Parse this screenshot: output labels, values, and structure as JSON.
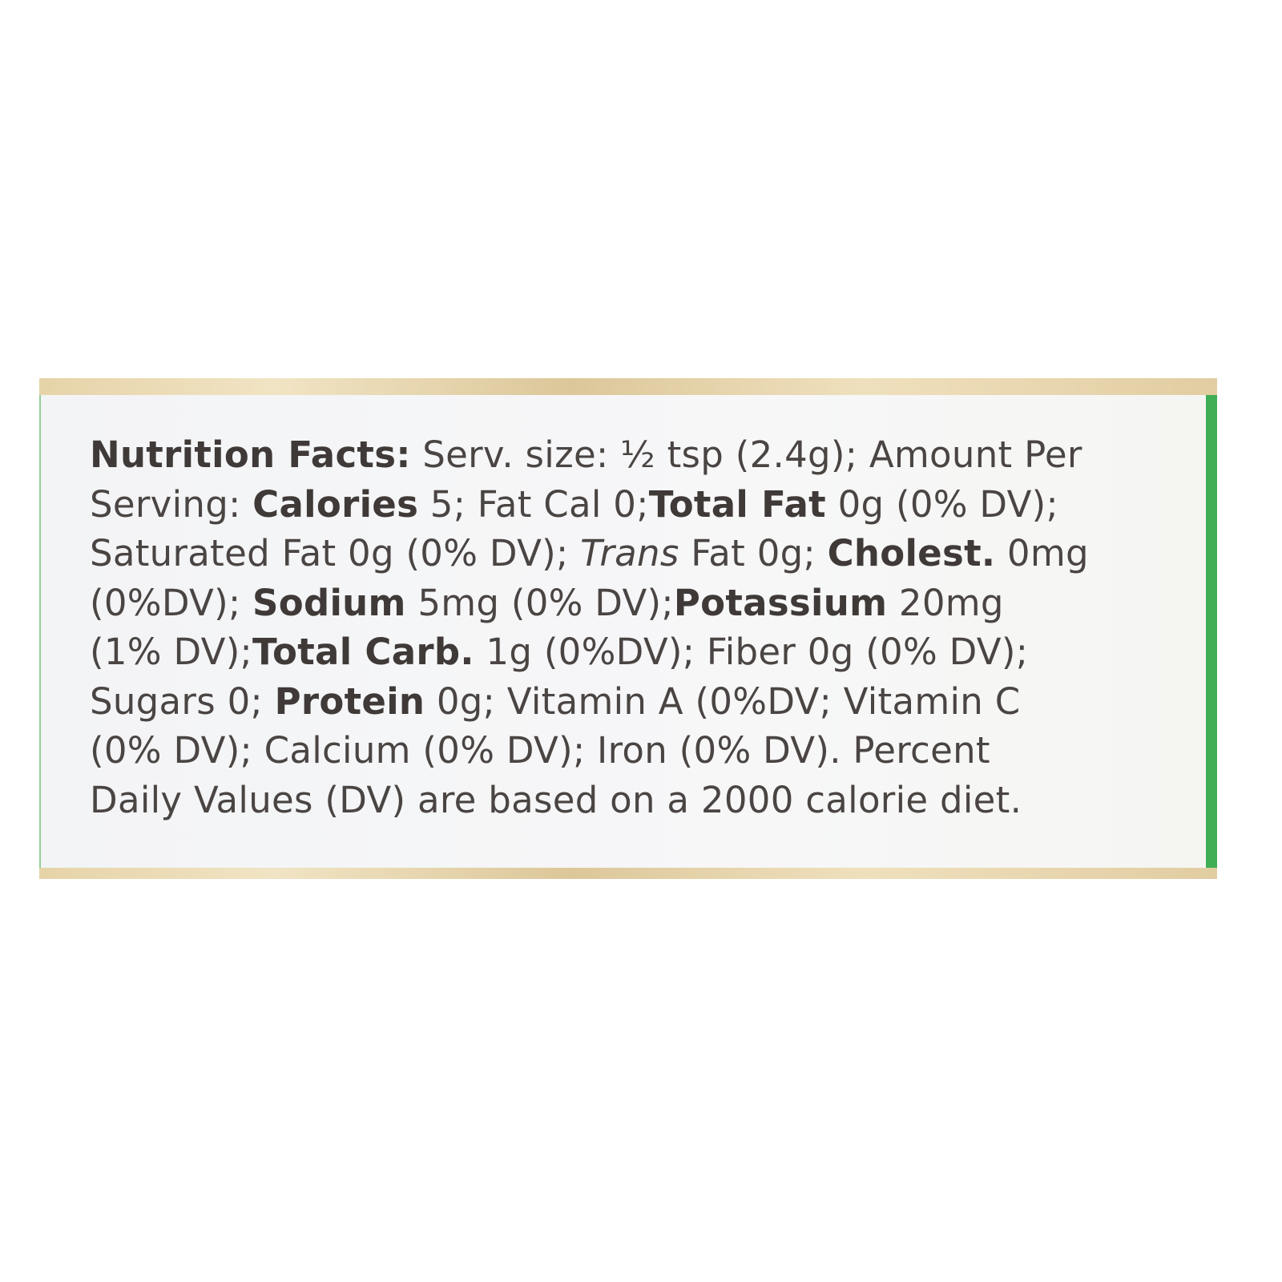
{
  "label": {
    "lines": [
      [
        {
          "t": "Nutrition Facts:",
          "s": "b"
        },
        {
          "t": " Serv. size: ½ tsp (2.4g); Amount Per",
          "s": ""
        }
      ],
      [
        {
          "t": "Serving: ",
          "s": ""
        },
        {
          "t": "Calories",
          "s": "b"
        },
        {
          "t": " 5; Fat Cal 0;",
          "s": ""
        },
        {
          "t": "Total Fat",
          "s": "b"
        },
        {
          "t": " 0g (0% DV);",
          "s": ""
        }
      ],
      [
        {
          "t": "Saturated Fat 0g (0% DV); ",
          "s": ""
        },
        {
          "t": "Trans",
          "s": "i"
        },
        {
          "t": " Fat 0g; ",
          "s": ""
        },
        {
          "t": "Cholest.",
          "s": "b"
        },
        {
          "t": " 0mg",
          "s": ""
        }
      ],
      [
        {
          "t": "(0%DV); ",
          "s": ""
        },
        {
          "t": "Sodium",
          "s": "b"
        },
        {
          "t": " 5mg (0% DV);",
          "s": ""
        },
        {
          "t": "Potassium",
          "s": "b"
        },
        {
          "t": " 20mg",
          "s": ""
        }
      ],
      [
        {
          "t": "(1% DV);",
          "s": ""
        },
        {
          "t": "Total Carb.",
          "s": "b"
        },
        {
          "t": " 1g (0%DV); Fiber 0g (0% DV);",
          "s": ""
        }
      ],
      [
        {
          "t": "Sugars 0; ",
          "s": ""
        },
        {
          "t": "Protein",
          "s": "b"
        },
        {
          "t": " 0g; Vitamin A (0%DV; Vitamin C",
          "s": ""
        }
      ],
      [
        {
          "t": "(0% DV); Calcium (0% DV); Iron (0% DV). Percent",
          "s": ""
        }
      ],
      [
        {
          "t": "Daily Values (DV) are based on a 2000 calorie diet.",
          "s": ""
        }
      ]
    ],
    "colors": {
      "text": "#4a4543",
      "accent_strip": "#3fae55",
      "background": "#f5f6f7"
    }
  }
}
